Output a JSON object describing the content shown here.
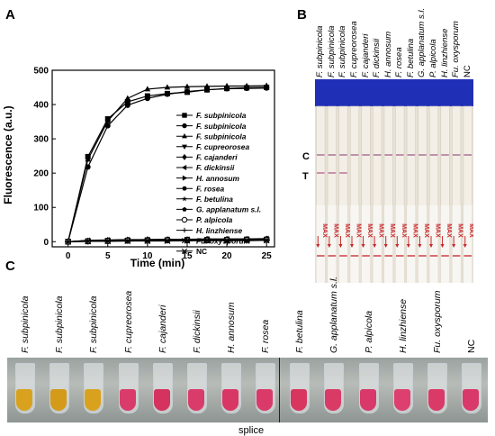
{
  "panel_labels": {
    "a": "A",
    "b": "B",
    "c": "C"
  },
  "chart_data": {
    "type": "line",
    "xlabel": "Time (min)",
    "ylabel": "Fluorescence (a.u.)",
    "xlim": [
      -2,
      26
    ],
    "ylim": [
      -15,
      500
    ],
    "xticks": [
      0,
      5,
      10,
      15,
      20,
      25
    ],
    "yticks": [
      0,
      100,
      200,
      300,
      400,
      500
    ],
    "x": [
      0,
      2.5,
      5,
      7.5,
      10,
      12.5,
      15,
      17.5,
      20,
      22.5,
      25
    ],
    "legend_position": "right",
    "series": [
      {
        "name": "F. subpinicola",
        "marker": "square",
        "values": [
          0,
          248,
          358,
          408,
          425,
          432,
          436,
          443,
          447,
          449,
          450
        ]
      },
      {
        "name": "F. subpinicola",
        "marker": "circle",
        "values": [
          0,
          218,
          338,
          398,
          418,
          430,
          438,
          443,
          446,
          447,
          448
        ]
      },
      {
        "name": "F. subpinicola",
        "marker": "triangle-up",
        "values": [
          0,
          240,
          352,
          418,
          445,
          450,
          452,
          453,
          454,
          454,
          455
        ]
      },
      {
        "name": "F. cupreorosea",
        "marker": "triangle-down",
        "values": [
          0,
          3,
          4,
          5,
          6,
          6,
          7,
          7,
          7,
          8,
          8
        ]
      },
      {
        "name": "F. cajanderi",
        "marker": "diamond",
        "values": [
          0,
          2,
          4,
          5,
          6,
          6,
          6,
          7,
          7,
          7,
          8
        ]
      },
      {
        "name": "F. dickinsii",
        "marker": "triangle-left",
        "values": [
          0,
          4,
          5,
          6,
          6,
          7,
          7,
          8,
          8,
          8,
          9
        ]
      },
      {
        "name": "H. annosum",
        "marker": "triangle-right",
        "values": [
          0,
          2,
          3,
          4,
          5,
          5,
          6,
          6,
          6,
          7,
          7
        ]
      },
      {
        "name": "F. rosea",
        "marker": "hexagon",
        "values": [
          0,
          3,
          4,
          5,
          5,
          6,
          6,
          6,
          7,
          7,
          7
        ]
      },
      {
        "name": "F. betulina",
        "marker": "star",
        "values": [
          0,
          2,
          3,
          4,
          4,
          5,
          5,
          5,
          6,
          6,
          6
        ]
      },
      {
        "name": "G. applanatum s.l.",
        "marker": "pentagon",
        "values": [
          0,
          3,
          4,
          4,
          5,
          5,
          5,
          6,
          6,
          6,
          6
        ]
      },
      {
        "name": "P. alpicola",
        "marker": "circle-open",
        "values": [
          0,
          1,
          2,
          3,
          3,
          4,
          4,
          4,
          5,
          5,
          5
        ]
      },
      {
        "name": "H. linzhiense",
        "marker": "plus",
        "values": [
          0,
          2,
          3,
          3,
          4,
          4,
          4,
          5,
          5,
          5,
          5
        ]
      },
      {
        "name": "Fu. oxysporum",
        "marker": "x",
        "values": [
          0,
          1,
          2,
          2,
          3,
          3,
          3,
          4,
          4,
          4,
          4
        ]
      },
      {
        "name": "NC",
        "marker": "asterisk",
        "values": [
          0,
          1,
          1,
          2,
          2,
          2,
          3,
          3,
          3,
          3,
          4
        ]
      }
    ]
  },
  "strips": {
    "labels": [
      "F. subpinicola",
      "F. subpinicola",
      "F. subpinicola",
      "F. cupreorosea",
      "F. cajanderi",
      "F. dickinsii",
      "H. annosum",
      "F. rosea",
      "F. betulina",
      "G. applanatum s.l.",
      "P. alpicola",
      "H. linzhiense",
      "Fu. oxysporum",
      "NC"
    ],
    "c_line": "C",
    "t_line": "T",
    "t_positive": [
      true,
      true,
      true,
      false,
      false,
      false,
      false,
      false,
      false,
      false,
      false,
      false,
      false,
      false
    ],
    "max_text": "MAX"
  },
  "tubes": {
    "labels": [
      "F. subpinicola",
      "F. subpinicola",
      "F. subpinicola",
      "F. cupreorosea",
      "F. cajanderi",
      "F. dickinsii",
      "H. annosum",
      "F. rosea",
      "F. betulina",
      "G. applanatum s.l.",
      "P. alpicola",
      "H. linzhiense",
      "Fu. oxysporum",
      "NC"
    ],
    "colors": [
      "#d9a21e",
      "#d49a1a",
      "#d9a21e",
      "#d93c6b",
      "#d5325f",
      "#d93c6b",
      "#d83766",
      "#da3a69",
      "#d8365f",
      "#da3b66",
      "#d8386a",
      "#dd3f6e",
      "#d93a68",
      "#d9386a"
    ],
    "splice_label": "splice"
  }
}
